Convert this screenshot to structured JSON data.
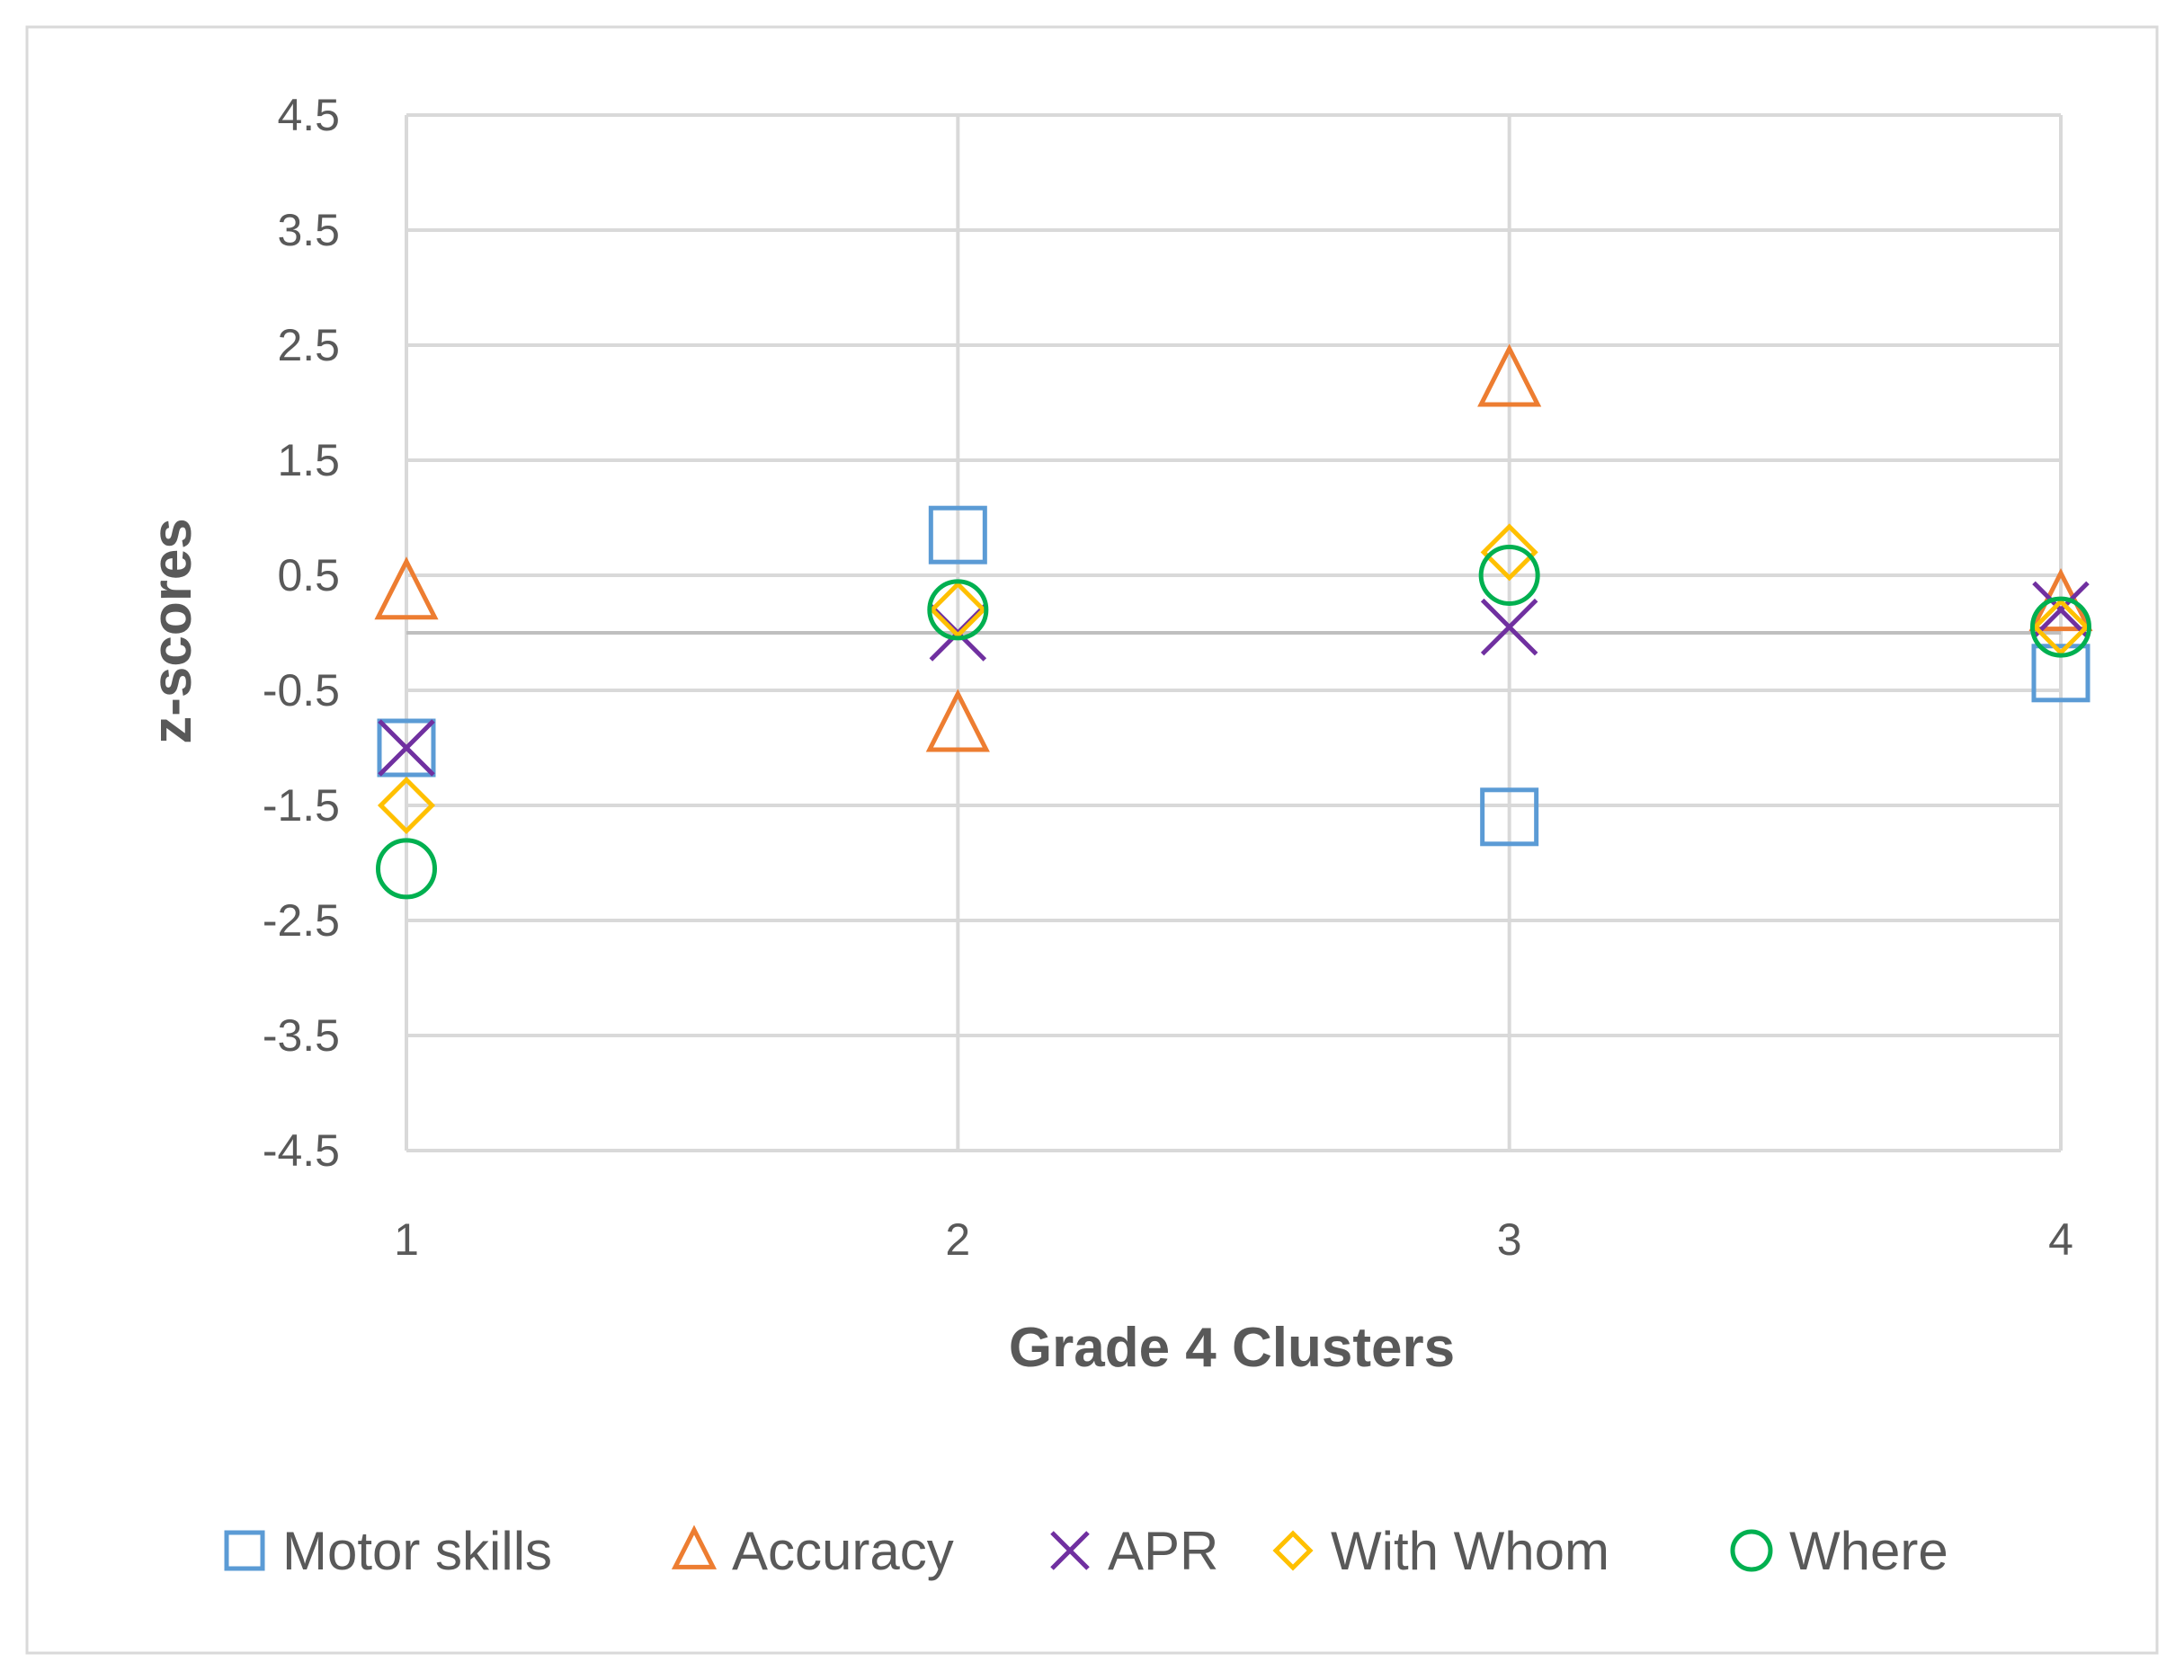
{
  "chart_data": {
    "type": "scatter",
    "title": "",
    "xlabel": "Grade 4 Clusters",
    "ylabel": "z-scores",
    "x": [
      1,
      2,
      3,
      4
    ],
    "x_ticks": [
      "1",
      "2",
      "3",
      "4"
    ],
    "y_ticks": [
      "4.5",
      "3.5",
      "2.5",
      "1.5",
      "0.5",
      "-0.5",
      "-1.5",
      "-2.5",
      "-3.5",
      "-4.5"
    ],
    "ylim": [
      -4.5,
      4.5
    ],
    "xlim": [
      1,
      4
    ],
    "grid": true,
    "legend_position": "bottom",
    "series": [
      {
        "name": "Motor skills",
        "marker": "square",
        "color": "#5B9BD5",
        "values": [
          -1.0,
          0.85,
          -1.6,
          -0.35
        ]
      },
      {
        "name": "Accuracy",
        "marker": "triangle",
        "color": "#ED7D31",
        "values": [
          0.35,
          -0.8,
          2.2,
          0.25
        ]
      },
      {
        "name": "APR",
        "marker": "x",
        "color": "#7030A0",
        "values": [
          -1.0,
          0.0,
          0.05,
          0.2
        ]
      },
      {
        "name": "With Whom",
        "marker": "diamond",
        "color": "#FFC000",
        "values": [
          -1.5,
          0.2,
          0.7,
          0.05
        ]
      },
      {
        "name": "Where",
        "marker": "circle",
        "color": "#00B050",
        "values": [
          -2.05,
          0.2,
          0.5,
          0.05
        ]
      }
    ]
  }
}
